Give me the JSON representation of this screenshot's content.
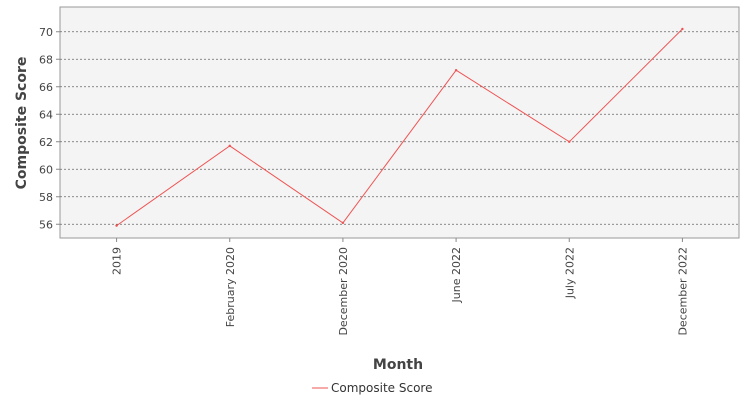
{
  "chart_data": {
    "type": "line",
    "title": "",
    "xlabel": "Month",
    "ylabel": "Composite Score",
    "categories": [
      "2019",
      "February 2020",
      "December 2020",
      "June 2022",
      "July 2022",
      "December 2022"
    ],
    "series": [
      {
        "name": "Composite Score",
        "color": "#ee5555",
        "values": [
          55.9,
          61.7,
          56.1,
          67.2,
          62.0,
          70.2
        ]
      }
    ],
    "ylim": [
      55,
      71.8
    ],
    "yticks": [
      56,
      58,
      60,
      62,
      64,
      66,
      68,
      70
    ],
    "grid": true,
    "legend_position": "bottom-center"
  }
}
